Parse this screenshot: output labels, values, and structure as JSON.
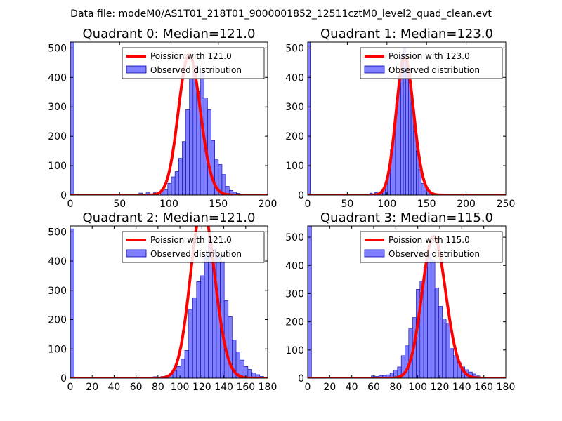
{
  "figure": {
    "suptitle": "Data file: modeM0/AS1T01_218T01_9000001852_12511cztM0_level2_quad_clean.evt",
    "colors": {
      "hist_fill": "#7f7fff",
      "hist_edge": "#0000aa",
      "poisson_line": "#ff0000"
    }
  },
  "chart_data": [
    {
      "type": "bar",
      "title": "Quadrant 0: Median=121.0",
      "xlim": [
        0,
        200
      ],
      "ylim": [
        0,
        520
      ],
      "xticks": [
        0,
        50,
        100,
        150,
        200
      ],
      "yticks": [
        0,
        100,
        200,
        300,
        400,
        500
      ],
      "legend": {
        "loc": "top-right",
        "entries": [
          "Poission with 121.0",
          "Observed distribution"
        ]
      },
      "poisson_mean": 121,
      "hist": {
        "bin_width": 3.66,
        "edges_start": 0,
        "counts": [
          520,
          0,
          0,
          0,
          0,
          0,
          0,
          0,
          0,
          0,
          0,
          0,
          0,
          0,
          0,
          0,
          0,
          0,
          0,
          7,
          0,
          8,
          0,
          8,
          0,
          12,
          18,
          40,
          62,
          80,
          125,
          182,
          290,
          396,
          440,
          352,
          418,
          330,
          290,
          185,
          120,
          104,
          70,
          30,
          16,
          10,
          6,
          4,
          2,
          3
        ]
      },
      "grid": false
    },
    {
      "type": "bar",
      "title": "Quadrant 1: Median=123.0",
      "xlim": [
        0,
        250
      ],
      "ylim": [
        0,
        520
      ],
      "xticks": [
        0,
        50,
        100,
        150,
        200,
        250
      ],
      "yticks": [
        0,
        100,
        200,
        300,
        400,
        500
      ],
      "legend": {
        "loc": "top-right",
        "entries": [
          "Poission with 123.0",
          "Observed distribution"
        ]
      },
      "poisson_mean": 123,
      "hist": {
        "bin_width": 3.26,
        "edges_start": 0,
        "counts": [
          520,
          0,
          0,
          0,
          0,
          0,
          0,
          0,
          0,
          0,
          0,
          0,
          0,
          0,
          0,
          0,
          0,
          0,
          0,
          0,
          0,
          0,
          0,
          0,
          7,
          0,
          9,
          0,
          12,
          22,
          40,
          75,
          155,
          222,
          310,
          402,
          470,
          500,
          458,
          428,
          312,
          218,
          150,
          88,
          40,
          28,
          18,
          8,
          5,
          3
        ]
      },
      "grid": false
    },
    {
      "type": "bar",
      "title": "Quadrant 2: Median=121.0",
      "xlim": [
        0,
        180
      ],
      "ylim": [
        0,
        520
      ],
      "xticks": [
        0,
        20,
        40,
        60,
        80,
        100,
        120,
        140,
        160,
        180
      ],
      "yticks": [
        0,
        100,
        200,
        300,
        400,
        500
      ],
      "legend": {
        "loc": "top-right",
        "entries": [
          "Poission with 121.0",
          "Observed distribution"
        ]
      },
      "poisson_mean": 121,
      "hist": {
        "bin_width": 3.6,
        "edges_start": 0,
        "counts": [
          510,
          0,
          0,
          0,
          0,
          0,
          0,
          0,
          0,
          0,
          0,
          0,
          0,
          0,
          0,
          0,
          0,
          0,
          3,
          0,
          0,
          5,
          0,
          6,
          8,
          12,
          25,
          40,
          65,
          95,
          235,
          275,
          330,
          350,
          420,
          475,
          440,
          415,
          400,
          265,
          210,
          130,
          90,
          62,
          40,
          30,
          18,
          12,
          6,
          3
        ]
      },
      "grid": false
    },
    {
      "type": "bar",
      "title": "Quadrant 3: Median=115.0",
      "xlim": [
        0,
        180
      ],
      "ylim": [
        0,
        540
      ],
      "xticks": [
        0,
        20,
        40,
        60,
        80,
        100,
        120,
        140,
        160,
        180
      ],
      "yticks": [
        0,
        100,
        200,
        300,
        400,
        500
      ],
      "legend": {
        "loc": "top-right",
        "entries": [
          "Poission with 115.0",
          "Observed distribution"
        ]
      },
      "poisson_mean": 115,
      "hist": {
        "bin_width": 3.4,
        "edges_start": 0,
        "counts": [
          540,
          0,
          0,
          0,
          0,
          0,
          0,
          0,
          0,
          0,
          0,
          0,
          0,
          0,
          0,
          0,
          0,
          8,
          6,
          10,
          10,
          12,
          18,
          28,
          40,
          80,
          115,
          175,
          215,
          315,
          345,
          395,
          445,
          420,
          320,
          255,
          210,
          195,
          105,
          80,
          55,
          40,
          30,
          22,
          15,
          8,
          4,
          2,
          1,
          1
        ]
      },
      "grid": false
    }
  ]
}
